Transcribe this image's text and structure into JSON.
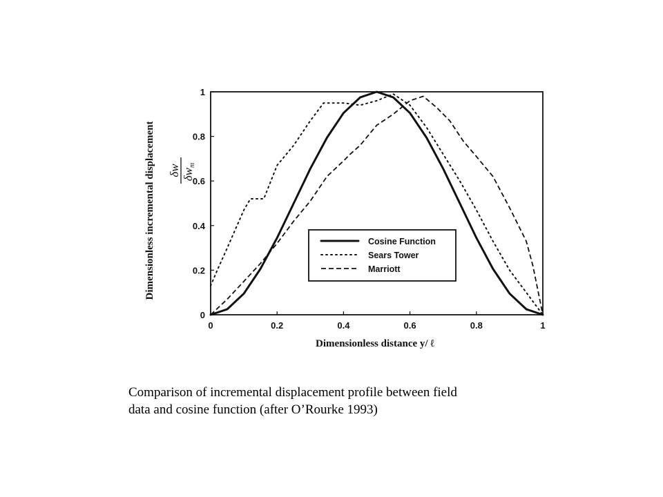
{
  "chart_data": {
    "type": "line",
    "xlabel": "Dimensionless distance y/ ℓ",
    "ylabel": "Dimensionless incremental displacement",
    "ylabel_fraction": {
      "numerator": "δw",
      "denominator": "δw",
      "denominator_sub": "m"
    },
    "xlim": [
      0,
      1
    ],
    "ylim": [
      0,
      1
    ],
    "x_ticks": [
      0,
      0.2,
      0.4,
      0.6,
      0.8,
      1
    ],
    "x_tick_labels": [
      "0",
      "0.2",
      "0.4",
      "0.6",
      "0.8",
      "1"
    ],
    "y_ticks": [
      0,
      0.2,
      0.4,
      0.6,
      0.8,
      1
    ],
    "y_tick_labels": [
      "0",
      "0.2",
      "0.4",
      "0.6",
      "0.8",
      "1"
    ],
    "grid": false,
    "legend_position": "lower-right",
    "series": [
      {
        "name": "Cosine Function",
        "line_style": "solid",
        "x": [
          0,
          0.05,
          0.1,
          0.15,
          0.2,
          0.25,
          0.3,
          0.35,
          0.4,
          0.45,
          0.5,
          0.55,
          0.6,
          0.65,
          0.7,
          0.75,
          0.8,
          0.85,
          0.9,
          0.95,
          1
        ],
        "y": [
          0,
          0.025,
          0.095,
          0.206,
          0.345,
          0.5,
          0.655,
          0.794,
          0.905,
          0.975,
          1,
          0.975,
          0.905,
          0.794,
          0.655,
          0.5,
          0.345,
          0.206,
          0.095,
          0.025,
          0
        ]
      },
      {
        "name": "Sears Tower",
        "line_style": "dotted",
        "x": [
          0,
          0.02,
          0.05,
          0.1,
          0.12,
          0.16,
          0.2,
          0.25,
          0.3,
          0.34,
          0.37,
          0.4,
          0.45,
          0.5,
          0.55,
          0.6,
          0.65,
          0.7,
          0.75,
          0.8,
          0.85,
          0.9,
          0.95,
          1
        ],
        "y": [
          0.13,
          0.2,
          0.3,
          0.47,
          0.52,
          0.52,
          0.67,
          0.76,
          0.87,
          0.95,
          0.95,
          0.95,
          0.94,
          0.96,
          0.99,
          0.94,
          0.84,
          0.72,
          0.6,
          0.47,
          0.33,
          0.2,
          0.1,
          0
        ]
      },
      {
        "name": "Marriott",
        "line_style": "dashed",
        "x": [
          0,
          0.05,
          0.1,
          0.15,
          0.2,
          0.25,
          0.3,
          0.35,
          0.4,
          0.42,
          0.45,
          0.5,
          0.55,
          0.6,
          0.64,
          0.68,
          0.72,
          0.76,
          0.8,
          0.85,
          0.9,
          0.95,
          0.97,
          1
        ],
        "y": [
          0,
          0.07,
          0.15,
          0.23,
          0.32,
          0.42,
          0.51,
          0.62,
          0.69,
          0.72,
          0.76,
          0.85,
          0.9,
          0.96,
          0.98,
          0.93,
          0.87,
          0.78,
          0.71,
          0.62,
          0.48,
          0.33,
          0.22,
          0
        ]
      }
    ]
  },
  "caption": {
    "line1": "Comparison of incremental displacement profile between field",
    "line2": "data and cosine function  (after O’Rourke 1993)"
  }
}
